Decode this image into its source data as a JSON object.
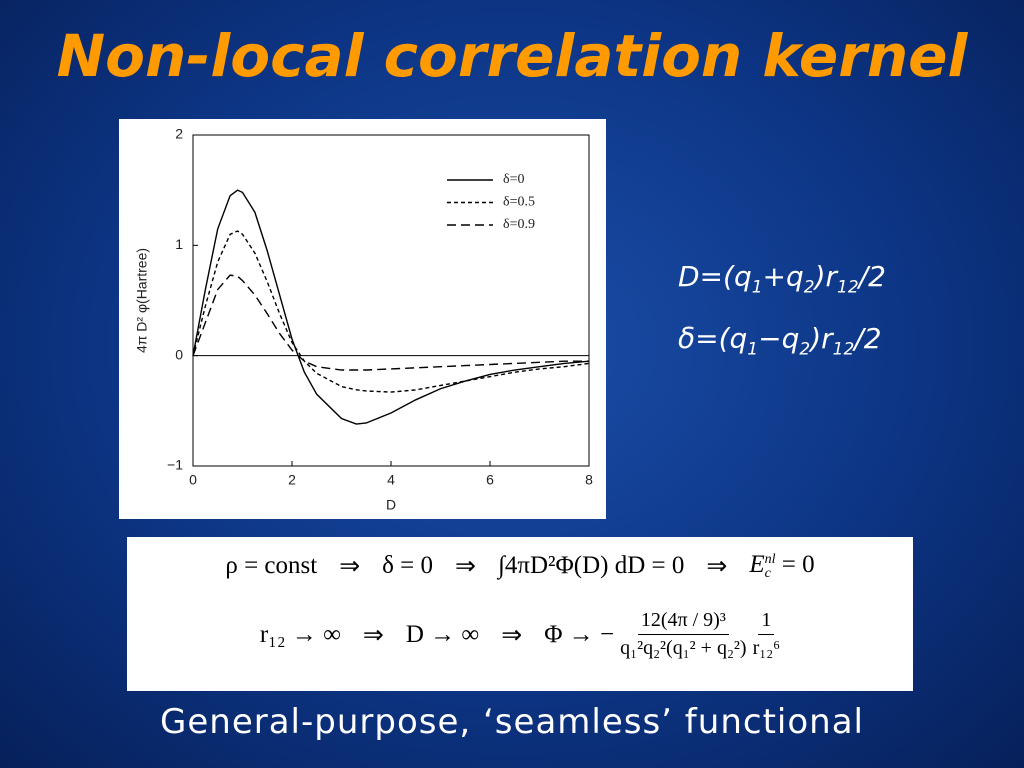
{
  "slide": {
    "title": "Non-local correlation kernel",
    "definitions": [
      [
        "D=(q",
        "1",
        "+q",
        "2",
        ")r",
        "12",
        "/2"
      ],
      [
        "δ=(q",
        "1",
        "−q",
        "2",
        ")r",
        "12",
        "/2"
      ]
    ],
    "formula": {
      "line1": [
        "ρ = const",
        "⇒",
        "δ = 0",
        "⇒",
        "∫4πD²Φ(D) dD = 0",
        "⇒",
        "E",
        "c",
        "nl",
        "= 0"
      ],
      "line2": [
        "r₁₂ → ∞",
        "⇒",
        "D → ∞",
        "⇒",
        "Φ → −",
        "12(4π / 9)³",
        "q₁²q₂²(q₁² + q₂²)",
        "1",
        "r₁₂⁶"
      ]
    },
    "footer": "General-purpose, ‘seamless’ functional"
  },
  "chart_data": {
    "type": "line",
    "xlabel": "D",
    "ylabel": "4π D² φ(Hartree)",
    "x": [
      0,
      0.25,
      0.5,
      0.75,
      0.9,
      1,
      1.25,
      1.5,
      1.75,
      2,
      2.25,
      2.5,
      3,
      3.3,
      3.5,
      4,
      4.5,
      5,
      5.5,
      6,
      6.5,
      7,
      7.5,
      8
    ],
    "series": [
      {
        "name": "δ=0",
        "color": "#000000",
        "dash": "none",
        "values": [
          0,
          0.6,
          1.15,
          1.45,
          1.5,
          1.48,
          1.3,
          0.95,
          0.55,
          0.15,
          -0.15,
          -0.35,
          -0.57,
          -0.62,
          -0.61,
          -0.52,
          -0.4,
          -0.3,
          -0.23,
          -0.17,
          -0.13,
          -0.1,
          -0.07,
          -0.05
        ]
      },
      {
        "name": "δ=0.5",
        "color": "#000000",
        "dash": "4,3",
        "values": [
          0,
          0.45,
          0.85,
          1.1,
          1.13,
          1.1,
          0.93,
          0.67,
          0.38,
          0.12,
          -0.05,
          -0.16,
          -0.28,
          -0.31,
          -0.32,
          -0.33,
          -0.31,
          -0.27,
          -0.23,
          -0.19,
          -0.15,
          -0.12,
          -0.1,
          -0.07
        ]
      },
      {
        "name": "δ=0.9",
        "color": "#000000",
        "dash": "9,5",
        "values": [
          0,
          0.3,
          0.6,
          0.73,
          0.72,
          0.68,
          0.55,
          0.38,
          0.2,
          0.05,
          -0.05,
          -0.1,
          -0.13,
          -0.13,
          -0.13,
          -0.12,
          -0.11,
          -0.1,
          -0.09,
          -0.08,
          -0.07,
          -0.06,
          -0.05,
          -0.05
        ]
      }
    ],
    "xlim": [
      0,
      8
    ],
    "xticks": [
      0,
      2,
      4,
      6,
      8
    ],
    "ylim": [
      -1,
      2
    ],
    "yticks": [
      {
        "value": -1,
        "label": "−1"
      },
      0,
      1,
      2
    ],
    "legend": "upper right",
    "grid": false
  }
}
